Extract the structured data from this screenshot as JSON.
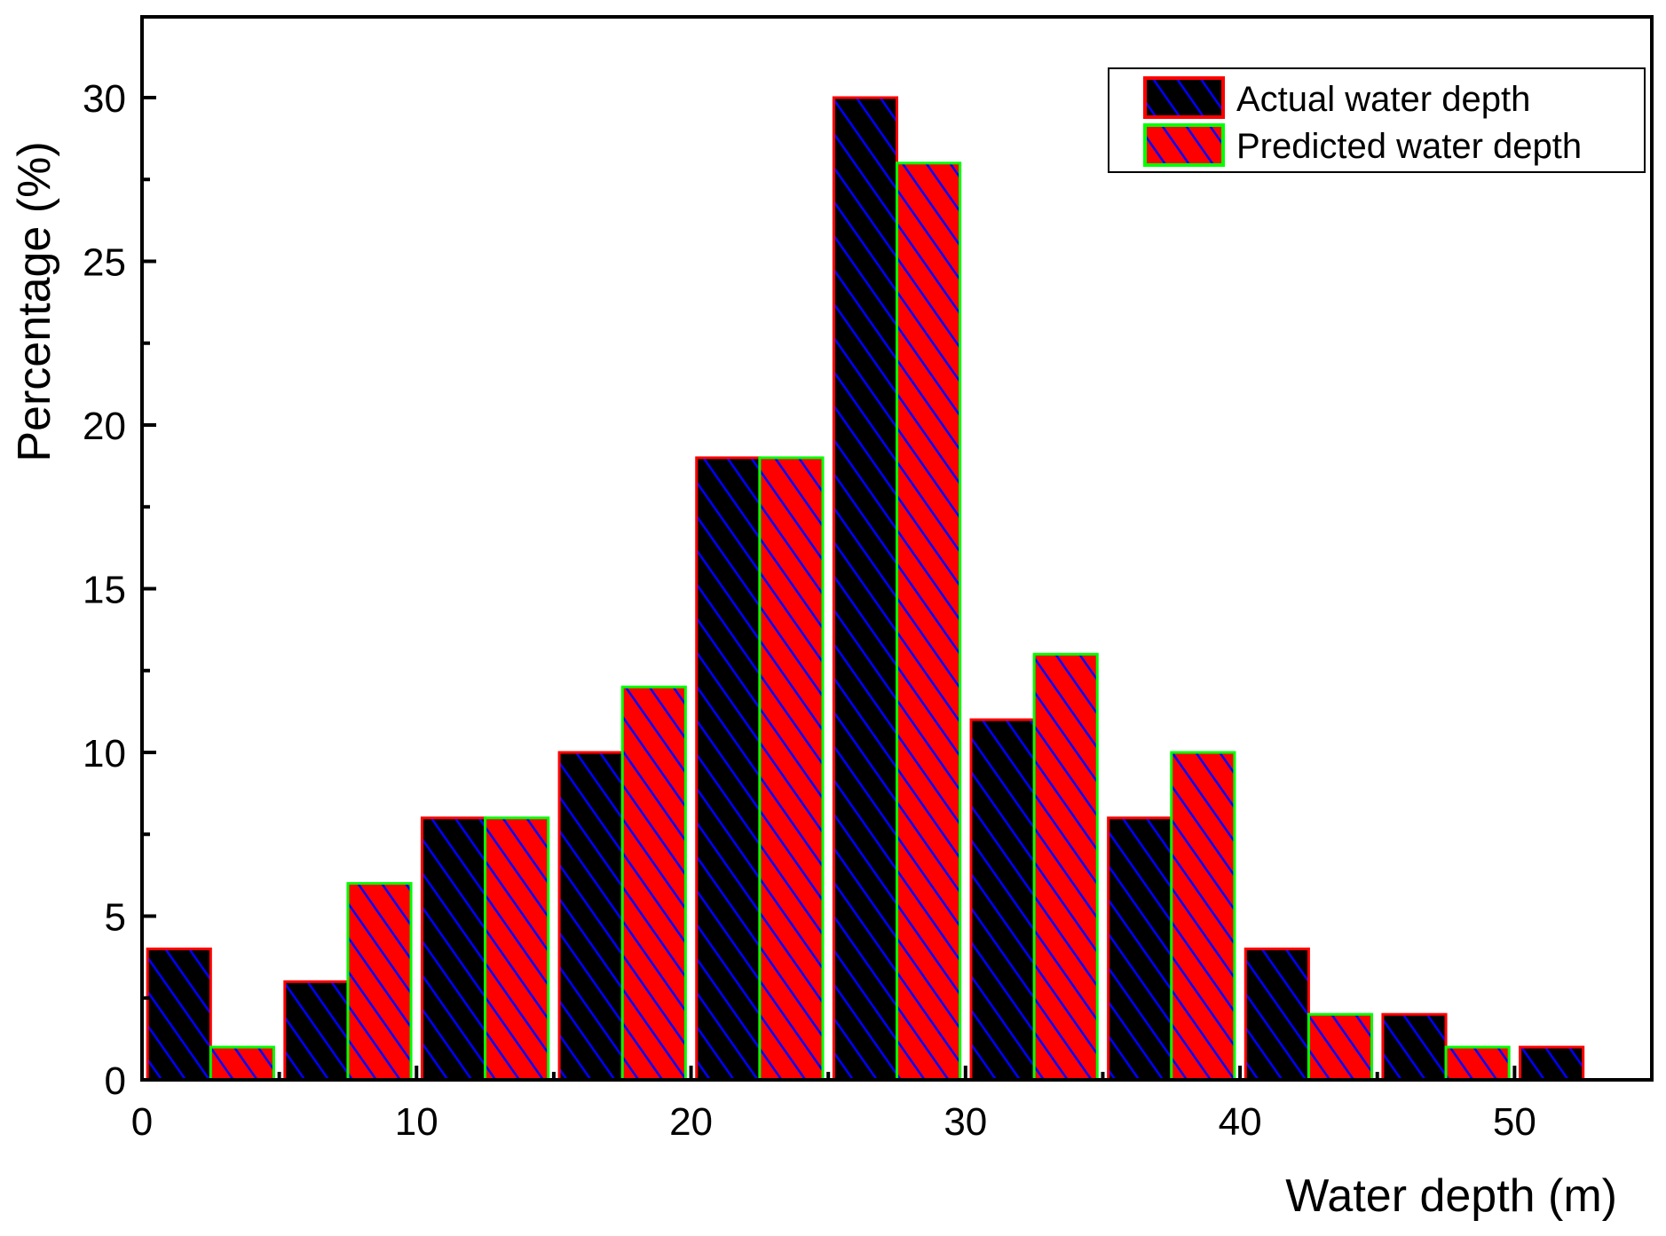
{
  "chart_data": {
    "type": "bar",
    "title": "",
    "xlabel": "Water depth (m)",
    "ylabel": "Percentage (%)",
    "xlim": [
      0,
      55
    ],
    "ylim": [
      0,
      32.5
    ],
    "xticks": [
      "0",
      "10",
      "20",
      "30",
      "40",
      "50"
    ],
    "yticks": [
      "0",
      "5",
      "10",
      "15",
      "20",
      "25",
      "30"
    ],
    "bin_starts": [
      0,
      5,
      10,
      15,
      20,
      25,
      30,
      35,
      40,
      45,
      50
    ],
    "bin_width": 5,
    "grid": false,
    "legend_position": "top-right",
    "series": [
      {
        "name": "Actual water depth",
        "values": [
          4,
          3,
          8,
          10,
          19,
          30,
          11,
          8,
          4,
          2,
          1
        ],
        "fill": "#000000",
        "border": "#ff0000",
        "hatch": "#0000ff"
      },
      {
        "name": "Predicted water depth",
        "values": [
          1,
          6,
          8,
          12,
          19,
          28,
          13,
          10,
          2,
          1,
          0
        ],
        "fill": "#ff0000",
        "border": "#00ff00",
        "hatch": "#0000ff"
      }
    ]
  }
}
